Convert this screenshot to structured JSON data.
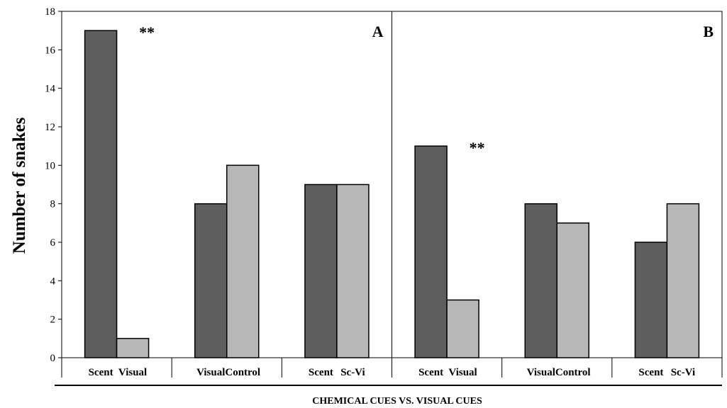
{
  "chart_data": {
    "type": "bar",
    "ylabel": "Number of snakes",
    "xlabel": "CHEMICAL CUES VS. VISUAL CUES",
    "ylim": [
      0,
      18
    ],
    "yticks": [
      0,
      2,
      4,
      6,
      8,
      10,
      12,
      14,
      16,
      18
    ],
    "grid": false,
    "colors": {
      "dark": "#5e5e5e",
      "light": "#b8b8b8"
    },
    "panels": [
      {
        "label": "A",
        "groups": [
          {
            "bars": [
              {
                "category": "Scent",
                "value": 17,
                "shade": "dark"
              },
              {
                "category": "Visual",
                "value": 1,
                "shade": "light"
              }
            ],
            "significance": "**"
          },
          {
            "bars": [
              {
                "category": "Visual",
                "value": 8,
                "shade": "dark"
              },
              {
                "category": "Control",
                "value": 10,
                "shade": "light"
              }
            ],
            "significance": ""
          },
          {
            "bars": [
              {
                "category": "Scent",
                "value": 9,
                "shade": "dark"
              },
              {
                "category": "Sc-Vi",
                "value": 9,
                "shade": "light"
              }
            ],
            "significance": ""
          }
        ]
      },
      {
        "label": "B",
        "groups": [
          {
            "bars": [
              {
                "category": "Scent",
                "value": 11,
                "shade": "dark"
              },
              {
                "category": "Visual",
                "value": 3,
                "shade": "light"
              }
            ],
            "significance": "**"
          },
          {
            "bars": [
              {
                "category": "Visual",
                "value": 8,
                "shade": "dark"
              },
              {
                "category": "Control",
                "value": 7,
                "shade": "light"
              }
            ],
            "significance": ""
          },
          {
            "bars": [
              {
                "category": "Scent",
                "value": 6,
                "shade": "dark"
              },
              {
                "category": "Sc-Vi",
                "value": 8,
                "shade": "light"
              }
            ],
            "significance": ""
          }
        ]
      }
    ]
  }
}
